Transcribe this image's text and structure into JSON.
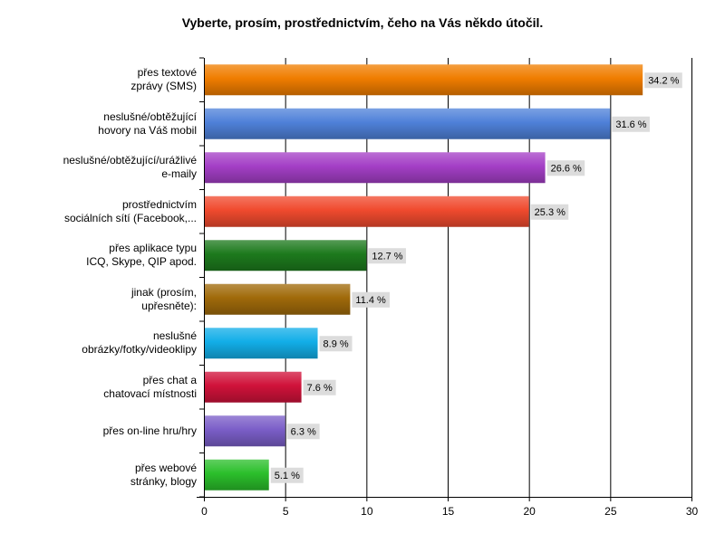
{
  "chart_data": {
    "type": "bar",
    "orientation": "horizontal",
    "title": "Vyberte, prosím, prostřednictvím, čeho na Vás někdo útočil.",
    "xlabel": "",
    "ylabel": "",
    "xlim": [
      0,
      30
    ],
    "ticks": [
      "0",
      "5",
      "10",
      "15",
      "20",
      "25",
      "30"
    ],
    "grid": "vertical",
    "categories": [
      [
        "přes textové",
        "zprávy (SMS)"
      ],
      [
        "neslušné/obtěžující",
        "hovory na Váš mobil"
      ],
      [
        "neslušné/obtěžující/urážlivé",
        "e-maily"
      ],
      [
        "prostřednictvím",
        "sociálních sítí (Facebook,..."
      ],
      [
        "přes aplikace typu",
        "ICQ, Skype, QIP apod."
      ],
      [
        "jinak (prosím,",
        "upřesněte):"
      ],
      [
        "neslušné",
        "obrázky/fotky/videoklipy"
      ],
      [
        "přes chat a",
        "chatovací místnosti"
      ],
      [
        "přes on-line hru/hry"
      ],
      [
        "přes webové",
        "stránky, blogy"
      ]
    ],
    "values": [
      27.0,
      25.0,
      21.0,
      20.0,
      10.0,
      9.0,
      7.0,
      6.0,
      5.0,
      4.0
    ],
    "data_labels": [
      "34.2 %",
      "31.6 %",
      "26.6 %",
      "25.3 %",
      "12.7 %",
      "11.4 %",
      "8.9 %",
      "7.6 %",
      "6.3 %",
      "5.1 %"
    ],
    "colors": [
      "#f07d00",
      "#4f81d9",
      "#a43fc6",
      "#f04a2e",
      "#1d7a1d",
      "#a06a0a",
      "#12aee8",
      "#d0123a",
      "#7b5ec8",
      "#2bbf2b"
    ]
  }
}
